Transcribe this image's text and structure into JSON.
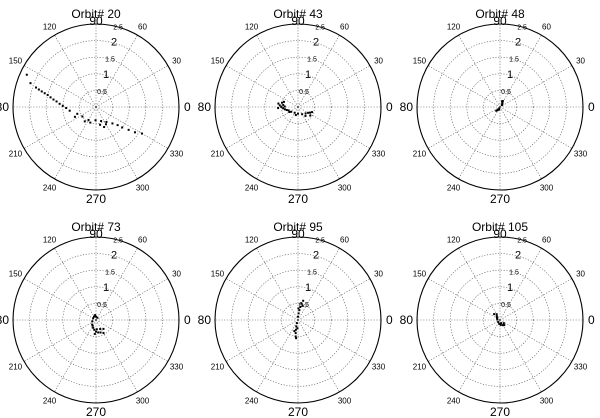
{
  "chart_data": [
    {
      "type": "scatter",
      "coordinate_system": "polar",
      "title": "Orbit# 20",
      "radial_range": [
        0,
        2.5
      ],
      "radial_ticks": [
        "0.5",
        "1",
        "1.5",
        "2",
        "2.5"
      ],
      "angle_labels": [
        "0",
        "30",
        "60",
        "90",
        "120",
        "150",
        "80",
        "210",
        "240",
        "270",
        "300",
        "330"
      ],
      "grid": true,
      "points": [
        {
          "theta": 155,
          "r": 2.3
        },
        {
          "theta": 160,
          "r": 2.1
        },
        {
          "theta": 162,
          "r": 1.9
        },
        {
          "theta": 163,
          "r": 1.8
        },
        {
          "theta": 164,
          "r": 1.7
        },
        {
          "theta": 165,
          "r": 1.6
        },
        {
          "theta": 166,
          "r": 1.5
        },
        {
          "theta": 168,
          "r": 1.4
        },
        {
          "theta": 170,
          "r": 1.3
        },
        {
          "theta": 172,
          "r": 1.2
        },
        {
          "theta": 175,
          "r": 1.1
        },
        {
          "theta": 178,
          "r": 1.0
        },
        {
          "theta": 182,
          "r": 0.9
        },
        {
          "theta": 188,
          "r": 0.8
        },
        {
          "theta": 200,
          "r": 0.6
        },
        {
          "theta": 215,
          "r": 0.5
        },
        {
          "theta": 240,
          "r": 0.45
        },
        {
          "theta": 268,
          "r": 0.4
        },
        {
          "theta": 290,
          "r": 0.45
        },
        {
          "theta": 305,
          "r": 0.55
        },
        {
          "theta": 315,
          "r": 0.7
        },
        {
          "theta": 320,
          "r": 0.85
        },
        {
          "theta": 322,
          "r": 1.0
        },
        {
          "theta": 325,
          "r": 1.2
        },
        {
          "theta": 327,
          "r": 1.4
        },
        {
          "theta": 330,
          "r": 1.6
        },
        {
          "theta": 300,
          "r": 0.6
        },
        {
          "theta": 292,
          "r": 0.65
        },
        {
          "theta": 283,
          "r": 0.55
        },
        {
          "theta": 250,
          "r": 0.5
        },
        {
          "theta": 232,
          "r": 0.55
        },
        {
          "theta": 205,
          "r": 0.7
        }
      ]
    },
    {
      "type": "scatter",
      "coordinate_system": "polar",
      "title": "Orbit# 43",
      "radial_range": [
        0,
        2.5
      ],
      "radial_ticks": [
        "0.5",
        "1",
        "1.5",
        "2",
        "2.5"
      ],
      "angle_labels": [
        "0",
        "30",
        "60",
        "90",
        "120",
        "150",
        "80",
        "210",
        "240",
        "270",
        "300",
        "330"
      ],
      "grid": true,
      "points": [
        {
          "theta": 170,
          "r": 0.6
        },
        {
          "theta": 175,
          "r": 0.55
        },
        {
          "theta": 180,
          "r": 0.5
        },
        {
          "theta": 185,
          "r": 0.45
        },
        {
          "theta": 190,
          "r": 0.4
        },
        {
          "theta": 200,
          "r": 0.3
        },
        {
          "theta": 215,
          "r": 0.25
        },
        {
          "theta": 240,
          "r": 0.2
        },
        {
          "theta": 270,
          "r": 0.2
        },
        {
          "theta": 300,
          "r": 0.25
        },
        {
          "theta": 320,
          "r": 0.3
        },
        {
          "theta": 330,
          "r": 0.35
        },
        {
          "theta": 335,
          "r": 0.4
        },
        {
          "theta": 340,
          "r": 0.45
        },
        {
          "theta": 165,
          "r": 0.5
        },
        {
          "theta": 172,
          "r": 0.45
        },
        {
          "theta": 178,
          "r": 0.4
        },
        {
          "theta": 195,
          "r": 0.35
        },
        {
          "theta": 210,
          "r": 0.3
        },
        {
          "theta": 255,
          "r": 0.25
        },
        {
          "theta": 310,
          "r": 0.35
        },
        {
          "theta": 325,
          "r": 0.45
        },
        {
          "theta": 160,
          "r": 0.45
        },
        {
          "theta": 183,
          "r": 0.6
        }
      ]
    },
    {
      "type": "scatter",
      "coordinate_system": "polar",
      "title": "Orbit# 48",
      "radial_range": [
        0,
        2.5
      ],
      "radial_ticks": [
        "0.5",
        "1",
        "1.5",
        "2",
        "2.5"
      ],
      "angle_labels": [
        "0",
        "30",
        "60",
        "90",
        "120",
        "150",
        "80",
        "210",
        "240",
        "270",
        "300",
        "330"
      ],
      "grid": true,
      "points": [
        {
          "theta": 60,
          "r": 0.15
        },
        {
          "theta": 55,
          "r": 0.12
        },
        {
          "theta": 50,
          "r": 0.1
        },
        {
          "theta": 45,
          "r": 0.08
        },
        {
          "theta": 240,
          "r": 0.05
        },
        {
          "theta": 235,
          "r": 0.1
        },
        {
          "theta": 230,
          "r": 0.13
        },
        {
          "theta": 225,
          "r": 0.16
        },
        {
          "theta": 65,
          "r": 0.2
        },
        {
          "theta": 70,
          "r": 0.18
        },
        {
          "theta": 250,
          "r": 0.08
        }
      ]
    },
    {
      "type": "scatter",
      "coordinate_system": "polar",
      "title": "Orbit# 73",
      "radial_range": [
        0,
        2.5
      ],
      "radial_ticks": [
        "0.5",
        "1",
        "1.5",
        "2",
        "2.5"
      ],
      "angle_labels": [
        "0",
        "30",
        "60",
        "90",
        "120",
        "150",
        "80",
        "210",
        "240",
        "270",
        "300",
        "330"
      ],
      "grid": true,
      "points": [
        {
          "theta": 100,
          "r": 0.15
        },
        {
          "theta": 120,
          "r": 0.12
        },
        {
          "theta": 150,
          "r": 0.1
        },
        {
          "theta": 200,
          "r": 0.12
        },
        {
          "theta": 240,
          "r": 0.2
        },
        {
          "theta": 260,
          "r": 0.3
        },
        {
          "theta": 270,
          "r": 0.35
        },
        {
          "theta": 280,
          "r": 0.38
        },
        {
          "theta": 290,
          "r": 0.4
        },
        {
          "theta": 300,
          "r": 0.45
        },
        {
          "theta": 250,
          "r": 0.25
        },
        {
          "theta": 230,
          "r": 0.18
        },
        {
          "theta": 90,
          "r": 0.1
        },
        {
          "theta": 60,
          "r": 0.08
        },
        {
          "theta": 310,
          "r": 0.35
        },
        {
          "theta": 265,
          "r": 0.42
        },
        {
          "theta": 275,
          "r": 0.28
        },
        {
          "theta": 295,
          "r": 0.3
        }
      ]
    },
    {
      "type": "scatter",
      "coordinate_system": "polar",
      "title": "Orbit# 95",
      "radial_range": [
        0,
        2.5
      ],
      "radial_ticks": [
        "0.5",
        "1",
        "1.5",
        "2",
        "2.5"
      ],
      "angle_labels": [
        "0",
        "30",
        "60",
        "90",
        "120",
        "150",
        "80",
        "210",
        "240",
        "270",
        "300",
        "330"
      ],
      "grid": true,
      "points": [
        {
          "theta": 75,
          "r": 0.6
        },
        {
          "theta": 78,
          "r": 0.5
        },
        {
          "theta": 80,
          "r": 0.4
        },
        {
          "theta": 82,
          "r": 0.3
        },
        {
          "theta": 85,
          "r": 0.2
        },
        {
          "theta": 90,
          "r": 0.1
        },
        {
          "theta": 250,
          "r": 0.1
        },
        {
          "theta": 255,
          "r": 0.2
        },
        {
          "theta": 258,
          "r": 0.3
        },
        {
          "theta": 260,
          "r": 0.4
        },
        {
          "theta": 262,
          "r": 0.5
        },
        {
          "theta": 264,
          "r": 0.55
        },
        {
          "theta": 72,
          "r": 0.45
        },
        {
          "theta": 88,
          "r": 0.35
        },
        {
          "theta": 252,
          "r": 0.35
        },
        {
          "theta": 266,
          "r": 0.25
        }
      ]
    },
    {
      "type": "scatter",
      "coordinate_system": "polar",
      "title": "Orbit# 105",
      "radial_range": [
        0,
        2.5
      ],
      "radial_ticks": [
        "0.5",
        "1",
        "1.5",
        "2",
        "2.5"
      ],
      "angle_labels": [
        "0",
        "30",
        "60",
        "90",
        "120",
        "150",
        "80",
        "210",
        "240",
        "270",
        "300",
        "330"
      ],
      "grid": true,
      "points": [
        {
          "theta": 130,
          "r": 0.15
        },
        {
          "theta": 140,
          "r": 0.12
        },
        {
          "theta": 150,
          "r": 0.1
        },
        {
          "theta": 170,
          "r": 0.08
        },
        {
          "theta": 230,
          "r": 0.08
        },
        {
          "theta": 260,
          "r": 0.12
        },
        {
          "theta": 280,
          "r": 0.15
        },
        {
          "theta": 300,
          "r": 0.18
        },
        {
          "theta": 310,
          "r": 0.2
        },
        {
          "theta": 320,
          "r": 0.15
        },
        {
          "theta": 120,
          "r": 0.2
        },
        {
          "theta": 135,
          "r": 0.25
        },
        {
          "theta": 290,
          "r": 0.1
        }
      ]
    }
  ]
}
